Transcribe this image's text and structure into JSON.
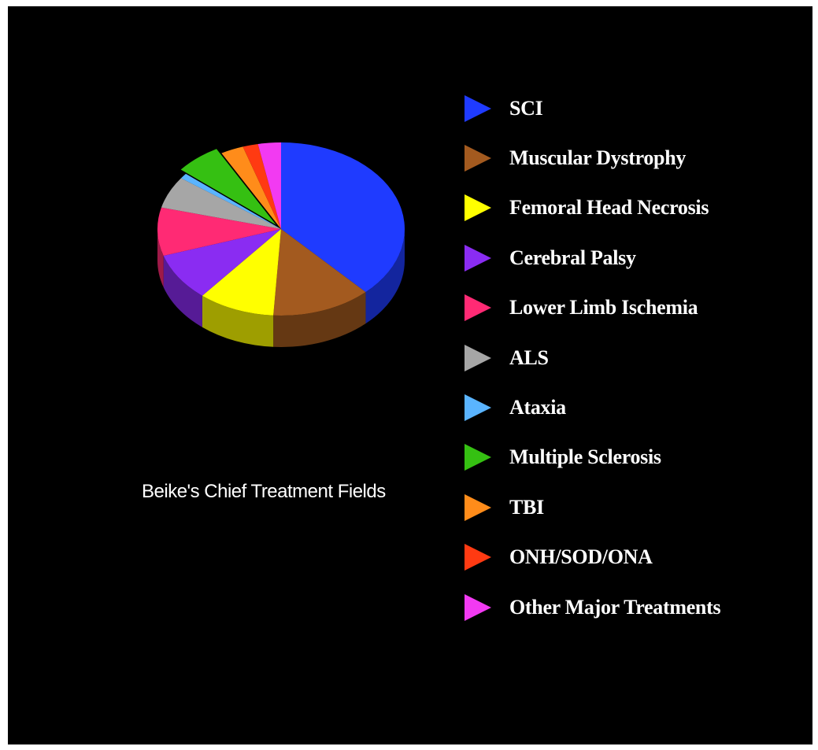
{
  "chart_data": {
    "type": "pie",
    "title": "Beike's Chief Treatment Fields",
    "style": "3d-exploded",
    "legend_position": "right",
    "slices": [
      {
        "label": "SCI",
        "value": 38,
        "color": "#1f3bff"
      },
      {
        "label": "Muscular Dystrophy",
        "value": 13,
        "color": "#a35a1f"
      },
      {
        "label": "Femoral Head Necrosis",
        "value": 10,
        "color": "#ffff00"
      },
      {
        "label": "Cerebral Palsy",
        "value": 9,
        "color": "#8a2cf2"
      },
      {
        "label": "Lower Limb Ischemia",
        "value": 9,
        "color": "#ff2a74"
      },
      {
        "label": "ALS",
        "value": 6,
        "color": "#a6a6a6"
      },
      {
        "label": "Ataxia",
        "value": 1,
        "color": "#5ab4ff"
      },
      {
        "label": "Multiple Sclerosis",
        "value": 6,
        "color": "#35c012"
      },
      {
        "label": "TBI",
        "value": 3,
        "color": "#ff8c1a"
      },
      {
        "label": "ONH/SOD/ONA",
        "value": 2,
        "color": "#ff3a12"
      },
      {
        "label": "Other Major Treatments",
        "value": 3,
        "color": "#f23af2"
      }
    ]
  }
}
